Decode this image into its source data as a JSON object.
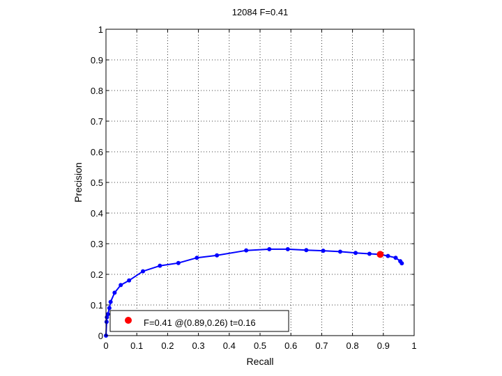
{
  "chart_data": {
    "type": "line",
    "title": "12084 F=0.41",
    "xlabel": "Recall",
    "ylabel": "Precision",
    "xlim": [
      0,
      1
    ],
    "ylim": [
      0,
      1
    ],
    "x_ticks": [
      "0",
      "0.1",
      "0.2",
      "0.3",
      "0.4",
      "0.5",
      "0.6",
      "0.7",
      "0.8",
      "0.9",
      "1"
    ],
    "y_ticks": [
      "0",
      "0.1",
      "0.2",
      "0.3",
      "0.4",
      "0.5",
      "0.6",
      "0.7",
      "0.8",
      "0.9",
      "1"
    ],
    "grid": true,
    "series": [
      {
        "color": "#0000ff",
        "points": [
          [
            0.0,
            0.0
          ],
          [
            0.002,
            0.045
          ],
          [
            0.003,
            0.06
          ],
          [
            0.006,
            0.07
          ],
          [
            0.011,
            0.09
          ],
          [
            0.015,
            0.11
          ],
          [
            0.028,
            0.14
          ],
          [
            0.048,
            0.165
          ],
          [
            0.075,
            0.18
          ],
          [
            0.12,
            0.21
          ],
          [
            0.175,
            0.228
          ],
          [
            0.235,
            0.237
          ],
          [
            0.295,
            0.254
          ],
          [
            0.36,
            0.262
          ],
          [
            0.455,
            0.278
          ],
          [
            0.53,
            0.282
          ],
          [
            0.59,
            0.282
          ],
          [
            0.65,
            0.279
          ],
          [
            0.705,
            0.277
          ],
          [
            0.76,
            0.274
          ],
          [
            0.81,
            0.27
          ],
          [
            0.855,
            0.267
          ],
          [
            0.89,
            0.265
          ],
          [
            0.915,
            0.26
          ],
          [
            0.94,
            0.254
          ],
          [
            0.955,
            0.243
          ],
          [
            0.96,
            0.236
          ]
        ]
      }
    ],
    "best_point": {
      "x": 0.89,
      "y": 0.265,
      "color": "#ff0000"
    },
    "legend": {
      "position": "bottom-left",
      "label": "F=0.41 @(0.89,0.26) t=0.16"
    }
  }
}
